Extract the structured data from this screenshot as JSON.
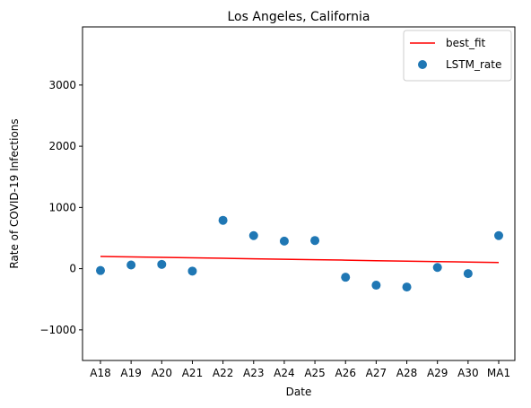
{
  "chart_data": {
    "type": "scatter",
    "title": "Los Angeles, California",
    "xlabel": "Date",
    "ylabel": "Rate of COVID-19 Infections",
    "categories": [
      "A18",
      "A19",
      "A20",
      "A21",
      "A22",
      "A23",
      "A24",
      "A25",
      "A26",
      "A27",
      "A28",
      "A29",
      "A30",
      "MA1"
    ],
    "ylim": [
      -1500,
      3950
    ],
    "yticks": [
      -1000,
      0,
      1000,
      2000,
      3000
    ],
    "ytick_labels": [
      "−1000",
      "0",
      "1000",
      "2000",
      "3000"
    ],
    "grid": false,
    "legend_position": "top-right",
    "series": [
      {
        "name": "LSTM_rate",
        "kind": "scatter",
        "color": "#1f77b4",
        "values": [
          -30,
          60,
          70,
          -40,
          790,
          540,
          450,
          460,
          -140,
          -270,
          -300,
          20,
          -80,
          540
        ]
      },
      {
        "name": "best_fit",
        "kind": "line",
        "color": "#ff0000",
        "values": [
          200,
          192,
          185,
          177,
          170,
          162,
          154,
          147,
          139,
          131,
          124,
          116,
          108,
          101
        ]
      }
    ]
  }
}
